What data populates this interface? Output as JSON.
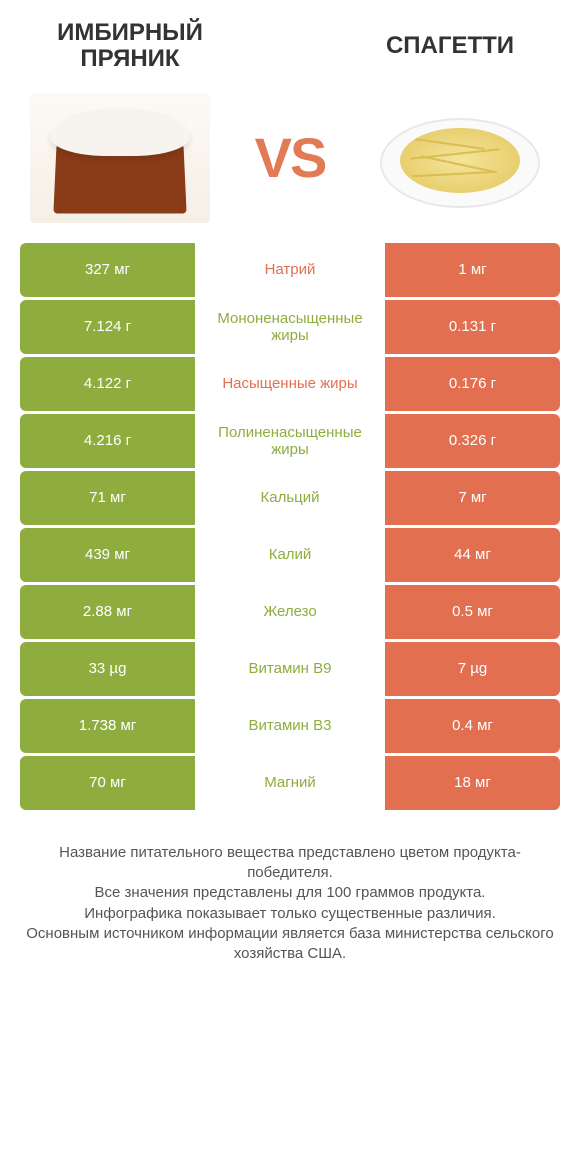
{
  "colors": {
    "left": "#8fad3f",
    "right": "#e36f51",
    "left_text": "#8fad3f",
    "right_text": "#e36f51",
    "vs": "#e27a56"
  },
  "header": {
    "left_title": "Имбирный пряник",
    "right_title": "Спагетти",
    "vs": "VS"
  },
  "rows": [
    {
      "left": "327 мг",
      "label": "Натрий",
      "right": "1 мг",
      "winner": "right"
    },
    {
      "left": "7.124 г",
      "label": "Мононенасыщенные жиры",
      "right": "0.131 г",
      "winner": "left"
    },
    {
      "left": "4.122 г",
      "label": "Насыщенные жиры",
      "right": "0.176 г",
      "winner": "right"
    },
    {
      "left": "4.216 г",
      "label": "Полиненасыщенные жиры",
      "right": "0.326 г",
      "winner": "left"
    },
    {
      "left": "71 мг",
      "label": "Кальций",
      "right": "7 мг",
      "winner": "left"
    },
    {
      "left": "439 мг",
      "label": "Калий",
      "right": "44 мг",
      "winner": "left"
    },
    {
      "left": "2.88 мг",
      "label": "Железо",
      "right": "0.5 мг",
      "winner": "left"
    },
    {
      "left": "33 µg",
      "label": "Витамин B9",
      "right": "7 µg",
      "winner": "left"
    },
    {
      "left": "1.738 мг",
      "label": "Витамин B3",
      "right": "0.4 мг",
      "winner": "left"
    },
    {
      "left": "70 мг",
      "label": "Магний",
      "right": "18 мг",
      "winner": "left"
    }
  ],
  "footer": {
    "line1": "Название питательного вещества представлено цветом продукта-победителя.",
    "line2": "Все значения представлены для 100 граммов продукта.",
    "line3": "Инфографика показывает только существенные различия.",
    "line4": "Основным источником информации является база министерства сельского хозяйства США."
  }
}
